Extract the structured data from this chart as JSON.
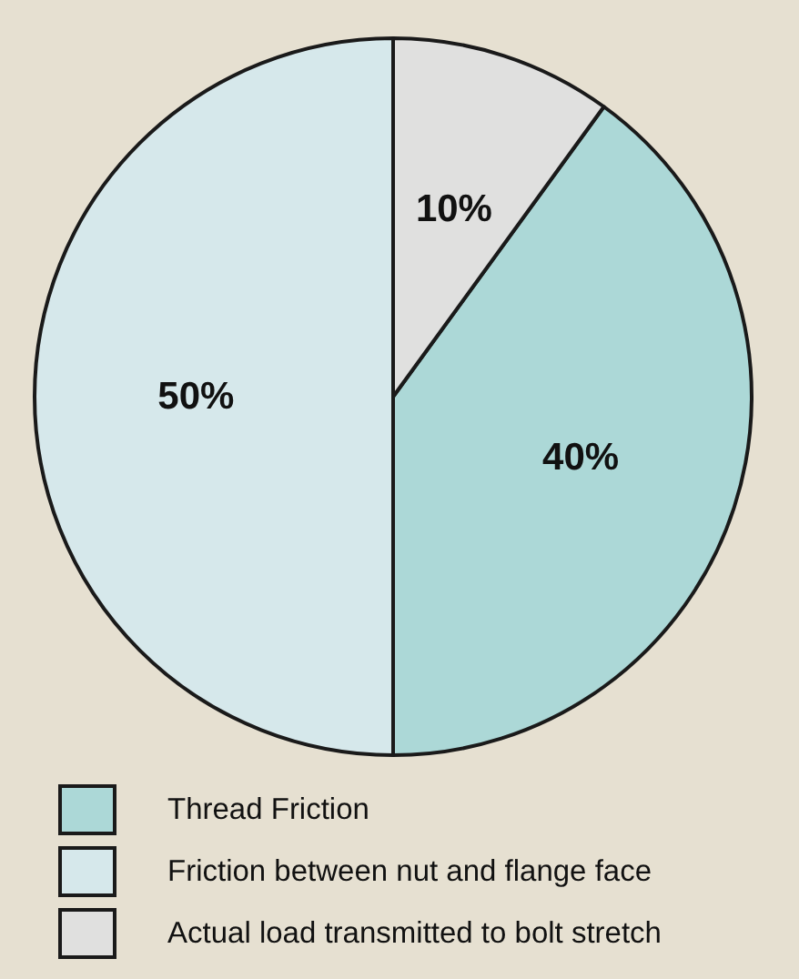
{
  "chart_data": {
    "type": "pie",
    "categories": [
      "Thread Friction",
      "Friction between nut and flange face",
      "Actual load transmitted to bolt stretch"
    ],
    "values": [
      40,
      50,
      10
    ],
    "colors": [
      "#acd8d7",
      "#d6e8eb",
      "#e0e0df"
    ],
    "value_labels": [
      "40%",
      "50%",
      "10%"
    ],
    "legend": "bottom"
  }
}
